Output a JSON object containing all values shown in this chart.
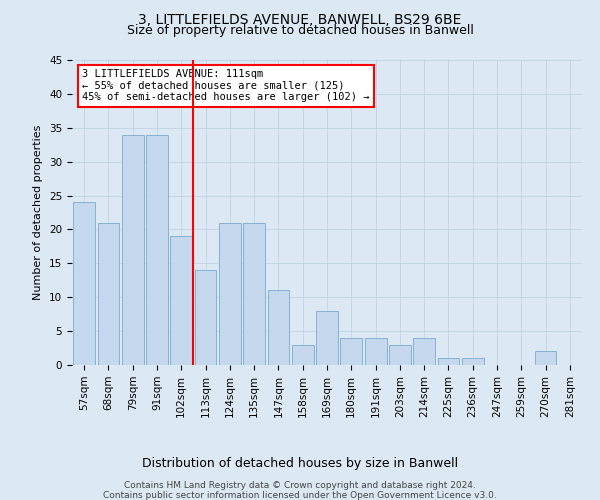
{
  "title": "3, LITTLEFIELDS AVENUE, BANWELL, BS29 6BE",
  "subtitle": "Size of property relative to detached houses in Banwell",
  "xlabel": "Distribution of detached houses by size in Banwell",
  "ylabel": "Number of detached properties",
  "bar_labels": [
    "57sqm",
    "68sqm",
    "79sqm",
    "91sqm",
    "102sqm",
    "113sqm",
    "124sqm",
    "135sqm",
    "147sqm",
    "158sqm",
    "169sqm",
    "180sqm",
    "191sqm",
    "203sqm",
    "214sqm",
    "225sqm",
    "236sqm",
    "247sqm",
    "259sqm",
    "270sqm",
    "281sqm"
  ],
  "bar_values": [
    24,
    21,
    34,
    34,
    19,
    14,
    21,
    21,
    11,
    3,
    8,
    4,
    4,
    3,
    4,
    1,
    1,
    0,
    0,
    2,
    0
  ],
  "bar_color": "#c5d8ed",
  "bar_edgecolor": "#7aaacf",
  "grid_color": "#b8cfe0",
  "background_color": "#dce9f5",
  "vline_x": 4.5,
  "vline_color": "red",
  "annotation_text": "3 LITTLEFIELDS AVENUE: 111sqm\n← 55% of detached houses are smaller (125)\n45% of semi-detached houses are larger (102) →",
  "annotation_box_facecolor": "white",
  "annotation_box_edgecolor": "red",
  "ylim": [
    0,
    45
  ],
  "yticks": [
    0,
    5,
    10,
    15,
    20,
    25,
    30,
    35,
    40,
    45
  ],
  "footnote1": "Contains HM Land Registry data © Crown copyright and database right 2024.",
  "footnote2": "Contains public sector information licensed under the Open Government Licence v3.0.",
  "title_fontsize": 10,
  "subtitle_fontsize": 9,
  "ylabel_fontsize": 8,
  "xlabel_fontsize": 9,
  "tick_fontsize": 7.5,
  "annot_fontsize": 7.5,
  "footnote_fontsize": 6.5
}
